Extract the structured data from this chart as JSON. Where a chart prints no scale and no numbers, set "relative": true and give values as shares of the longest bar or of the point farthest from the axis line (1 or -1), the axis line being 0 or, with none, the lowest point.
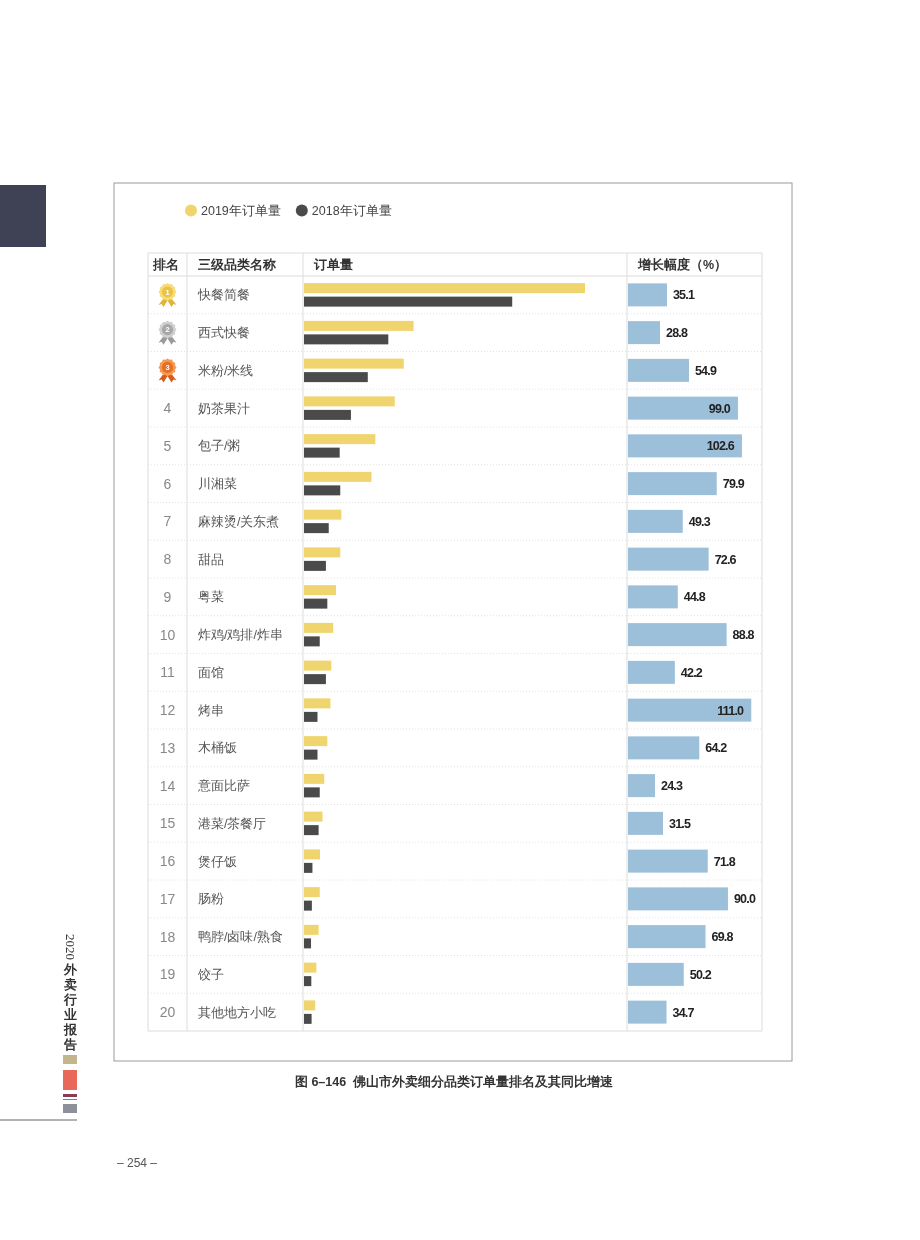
{
  "chart_data": [
    {
      "type": "bar",
      "orientation": "horizontal",
      "relative": true,
      "title": "图 6–146  佛山市外卖细分品类订单量排名及其同比增速",
      "xlabel": "订单量",
      "ylabel": "三级品类名称",
      "y2label": "排名",
      "categories": [
        "快餐简餐",
        "西式快餐",
        "米粉/米线",
        "奶茶果汁",
        "包子/粥",
        "川湘菜",
        "麻辣烫/关东煮",
        "甜品",
        "粤菜",
        "炸鸡/鸡排/炸串",
        "面馆",
        "烤串",
        "木桶饭",
        "意面比萨",
        "港菜/茶餐厅",
        "煲仔饭",
        "肠粉",
        "鸭脖/卤味/熟食",
        "饺子",
        "其他地方小吃"
      ],
      "y2_categories": [
        "1",
        "2",
        "3",
        "4",
        "5",
        "6",
        "7",
        "8",
        "9",
        "10",
        "11",
        "12",
        "13",
        "14",
        "15",
        "16",
        "17",
        "18",
        "19",
        "20"
      ],
      "series": [
        {
          "name": "2019年订单量",
          "color": "#f0d56e",
          "values": [
            1,
            0.39,
            0.355,
            0.323,
            0.254,
            0.24,
            0.133,
            0.129,
            0.114,
            0.104,
            0.097,
            0.094,
            0.083,
            0.072,
            0.066,
            0.057,
            0.056,
            0.052,
            0.044,
            0.04
          ]
        },
        {
          "name": "2018年订单量",
          "color": "#4a4a4a",
          "values": [
            0.741,
            0.3,
            0.227,
            0.167,
            0.127,
            0.129,
            0.088,
            0.078,
            0.083,
            0.056,
            0.078,
            0.048,
            0.048,
            0.056,
            0.052,
            0.03,
            0.028,
            0.025,
            0.026,
            0.027
          ]
        }
      ],
      "legend": "top left",
      "annotations": [
        "2020外卖行业报告",
        "– 254 –"
      ]
    },
    {
      "type": "bar",
      "orientation": "horizontal",
      "xlabel": "增长幅度（%）",
      "categories": [
        null,
        null,
        null,
        null,
        null,
        null,
        null,
        null,
        null,
        null,
        null,
        null,
        null,
        null,
        null,
        null,
        null,
        null,
        null,
        null
      ],
      "color": "#9cc0da",
      "values": [
        35.1,
        28.8,
        54.9,
        99.0,
        102.6,
        79.9,
        49.3,
        72.6,
        44.8,
        88.8,
        42.2,
        111.0,
        64.2,
        24.3,
        31.5,
        71.8,
        90.0,
        69.8,
        50.2,
        34.7
      ],
      "value_labels": [
        "35.1",
        "28.8",
        "54.9",
        "99.0",
        "102.6",
        "79.9",
        "49.3",
        "72.6",
        "44.8",
        "88.8",
        "42.2",
        "111.0",
        "64.2",
        "24.3",
        "31.5",
        "71.8",
        "90.0",
        "69.8",
        "50.2",
        "34.7"
      ]
    }
  ]
}
